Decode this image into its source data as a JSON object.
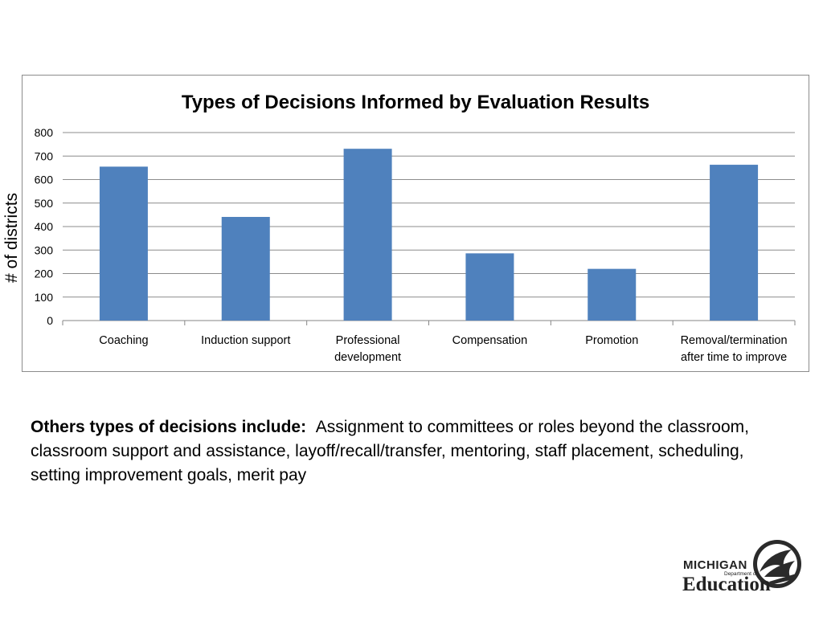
{
  "chart_data": {
    "type": "bar",
    "title": "Types of Decisions Informed by Evaluation Results",
    "ylabel": "# of districts",
    "xlabel": "",
    "ylim": [
      0,
      800
    ],
    "yticks": [
      0,
      100,
      200,
      300,
      400,
      500,
      600,
      700,
      800
    ],
    "grid": true,
    "bar_color": "#4f81bd",
    "categories": [
      [
        "Coaching"
      ],
      [
        "Induction support"
      ],
      [
        "Professional",
        "development"
      ],
      [
        "Compensation"
      ],
      [
        "Promotion"
      ],
      [
        "Removal/termination",
        "after time to improve"
      ]
    ],
    "values": [
      655,
      441,
      731,
      286,
      220,
      663
    ]
  },
  "note": {
    "lead": "Others types of decisions include:",
    "body": "Assignment to committees or roles beyond the classroom, classroom support and assistance, layoff/recall/transfer, mentoring, staff placement, scheduling, setting improvement goals, merit pay"
  },
  "logo": {
    "line1": "MICHIGAN",
    "line2": "Department of",
    "line3": "Education"
  }
}
